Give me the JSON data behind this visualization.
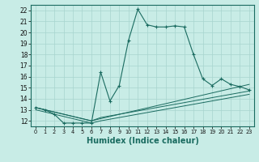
{
  "bg_color": "#c8ece6",
  "grid_color": "#a8d4ce",
  "line_color": "#1a6b60",
  "xlabel": "Humidex (Indice chaleur)",
  "xlabel_fontsize": 7,
  "xlim": [
    -0.5,
    23.5
  ],
  "ylim": [
    11.5,
    22.5
  ],
  "yticks": [
    12,
    13,
    14,
    15,
    16,
    17,
    18,
    19,
    20,
    21,
    22
  ],
  "xticks": [
    0,
    1,
    2,
    3,
    4,
    5,
    6,
    7,
    8,
    9,
    10,
    11,
    12,
    13,
    14,
    15,
    16,
    17,
    18,
    19,
    20,
    21,
    22,
    23
  ],
  "series": [
    {
      "x": [
        0,
        1,
        2,
        3,
        4,
        5,
        6,
        7,
        8,
        9,
        10,
        11,
        12,
        13,
        14,
        15,
        16,
        17,
        18,
        19,
        20,
        21,
        22,
        23
      ],
      "y": [
        13.2,
        13.0,
        12.6,
        11.8,
        11.8,
        11.8,
        11.8,
        16.4,
        13.8,
        15.2,
        19.3,
        22.1,
        20.7,
        20.5,
        20.5,
        20.6,
        20.5,
        18.0,
        15.8,
        15.2,
        15.8,
        15.3,
        15.1,
        14.8
      ],
      "has_marker": true
    },
    {
      "x": [
        0,
        6,
        7,
        23
      ],
      "y": [
        13.2,
        12.0,
        12.2,
        15.3
      ],
      "has_marker": false
    },
    {
      "x": [
        0,
        6,
        7,
        23
      ],
      "y": [
        13.2,
        12.0,
        12.3,
        14.7
      ],
      "has_marker": false
    },
    {
      "x": [
        0,
        6,
        7,
        23
      ],
      "y": [
        13.0,
        11.8,
        12.0,
        14.4
      ],
      "has_marker": false
    }
  ]
}
